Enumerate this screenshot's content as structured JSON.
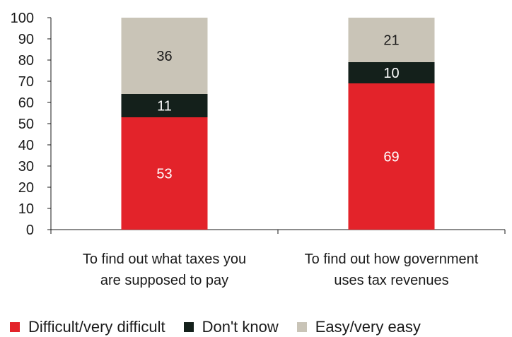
{
  "chart_data": {
    "type": "bar",
    "stacked": true,
    "categories": [
      [
        "To find out what taxes you",
        "are supposed to pay"
      ],
      [
        "To find out how government",
        "uses tax revenues"
      ]
    ],
    "series": [
      {
        "name": "Difficult/very difficult",
        "values": [
          53,
          69
        ],
        "color": "#e3232a",
        "label_color": "#ffffff"
      },
      {
        "name": "Don't know",
        "values": [
          11,
          10
        ],
        "color": "#14201b",
        "label_color": "#ffffff"
      },
      {
        "name": "Easy/very easy",
        "values": [
          36,
          21
        ],
        "color": "#c9c4b7",
        "label_color": "#1a1a1a"
      }
    ],
    "ylim": [
      0,
      100
    ],
    "yticks": [
      0,
      10,
      20,
      30,
      40,
      50,
      60,
      70,
      80,
      90,
      100
    ],
    "grid": false,
    "legend_position": "bottom"
  }
}
